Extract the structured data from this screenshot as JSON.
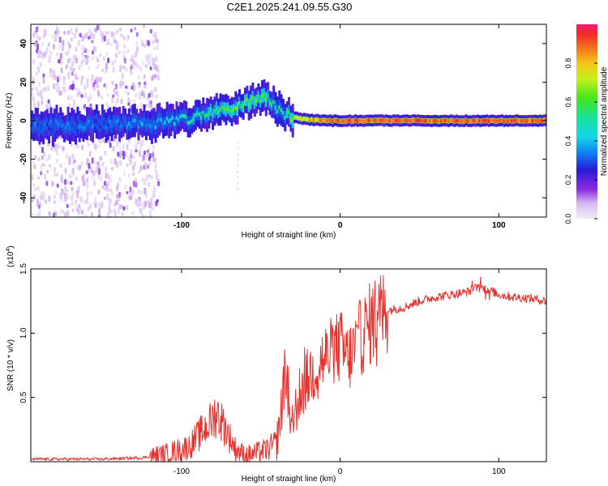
{
  "figure_title": "C2E1.2025.241.09.55.G30",
  "colors": {
    "snr_line": "#e8302c",
    "axis": "#000000",
    "background": "#ffffff"
  },
  "chart_data": [
    {
      "type": "heatmap",
      "title": "C2E1.2025.241.09.55.G30",
      "xlabel": "Height of straight line (km)",
      "ylabel": "Frequency (Hz)",
      "xlim": [
        -195,
        130
      ],
      "ylim": [
        -50,
        50
      ],
      "x_ticks": [
        -100,
        0,
        100
      ],
      "y_ticks": [
        -40,
        -20,
        0,
        20,
        40
      ],
      "colorbar": {
        "label": "Normalized spectral amplitude",
        "range": [
          0,
          1
        ],
        "ticks": [
          "0.0",
          "0.2",
          "0.4",
          "0.6",
          "0.8"
        ],
        "tick_values": [
          0.0,
          0.2,
          0.4,
          0.6,
          0.8
        ]
      },
      "ridge": {
        "x": [
          -195,
          -160,
          -130,
          -110,
          -95,
          -85,
          -75,
          -65,
          -55,
          -48,
          -44,
          -40,
          -35,
          -30,
          -25,
          -20,
          -10,
          0,
          20,
          60,
          100,
          130
        ],
        "freq": [
          -3,
          -2,
          -2,
          -1,
          1,
          3,
          5,
          8,
          11,
          13,
          10,
          6,
          3,
          2,
          1,
          0.5,
          0,
          0,
          0,
          0,
          0,
          0
        ],
        "peak_amplitude": [
          0.3,
          0.3,
          0.35,
          0.4,
          0.5,
          0.55,
          0.6,
          0.6,
          0.6,
          0.6,
          0.55,
          0.5,
          0.55,
          0.65,
          0.75,
          0.8,
          0.85,
          0.9,
          0.9,
          0.9,
          0.9,
          0.9
        ]
      },
      "noise_region_km": [
        -195,
        -115
      ]
    },
    {
      "type": "line",
      "xlabel": "Height of straight line (km)",
      "ylabel": "SNR (10 * v/v)",
      "y_scale_note": "(x10^4)",
      "xlim": [
        -195,
        130
      ],
      "ylim": [
        0,
        1.5
      ],
      "x_ticks": [
        -100,
        0,
        100
      ],
      "y_ticks": [
        0.5,
        1.0,
        1.5
      ],
      "y_tick_labels": [
        "0.5",
        "1.0",
        "1.5"
      ],
      "series": [
        {
          "name": "SNR",
          "x": [
            -195,
            -150,
            -125,
            -110,
            -95,
            -88,
            -82,
            -78,
            -74,
            -70,
            -66,
            -60,
            -55,
            -50,
            -45,
            -40,
            -37,
            -35,
            -33,
            -31,
            -28,
            -25,
            -20,
            -15,
            -10,
            -5,
            0,
            5,
            8,
            12,
            15,
            18,
            20,
            25,
            30,
            40,
            50,
            60,
            70,
            80,
            85,
            90,
            95,
            100,
            110,
            120,
            130
          ],
          "y": [
            0.02,
            0.02,
            0.03,
            0.06,
            0.12,
            0.22,
            0.3,
            0.38,
            0.3,
            0.2,
            0.1,
            0.05,
            0.06,
            0.08,
            0.1,
            0.15,
            0.4,
            0.7,
            0.5,
            0.3,
            0.4,
            0.55,
            0.65,
            0.75,
            0.8,
            0.85,
            0.9,
            0.8,
            0.85,
            0.95,
            1.0,
            1.05,
            1.1,
            1.15,
            1.18,
            1.2,
            1.25,
            1.28,
            1.3,
            1.32,
            1.35,
            1.35,
            1.33,
            1.3,
            1.28,
            1.27,
            1.25
          ]
        }
      ]
    }
  ]
}
